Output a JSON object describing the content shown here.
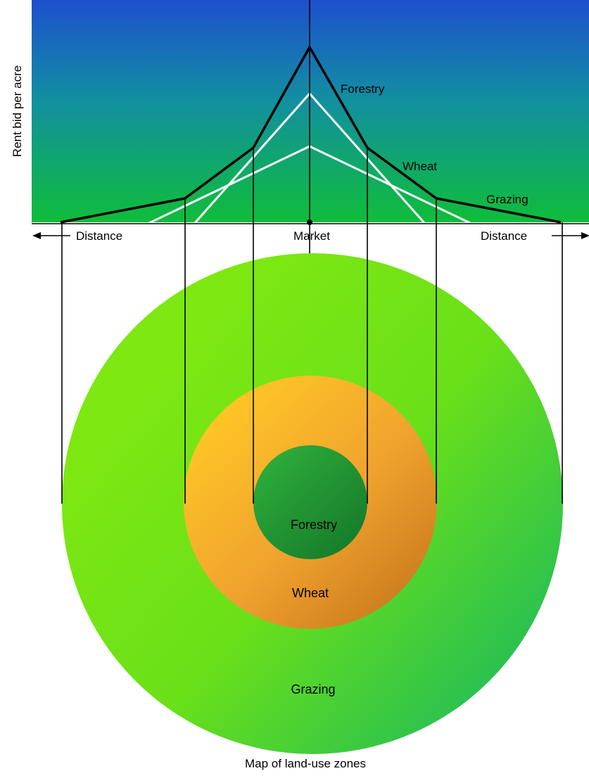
{
  "chart": {
    "y_axis_label": "Rent bid per acre",
    "x_center_label": "Market",
    "x_left_label": "Distance",
    "x_right_label": "Distance"
  },
  "curve_labels": {
    "forestry": "Forestry",
    "wheat": "Wheat",
    "grazing": "Grazing"
  },
  "zones": {
    "forestry": "Forestry",
    "wheat": "Wheat",
    "grazing": "Grazing"
  },
  "caption": "Map of land-use zones",
  "colors": {
    "chart_top": "#1d4fcf",
    "chart_bottom": "#0fbd3a",
    "grazing_light": "#7ee812",
    "grazing_dark": "#18b860",
    "wheat_light": "#ffc926",
    "wheat_dark": "#c8781c",
    "forestry_light": "#2eac3a",
    "forestry_dark": "#157a2a",
    "rent_lines": "#ffffff",
    "envelope": "#000000"
  }
}
